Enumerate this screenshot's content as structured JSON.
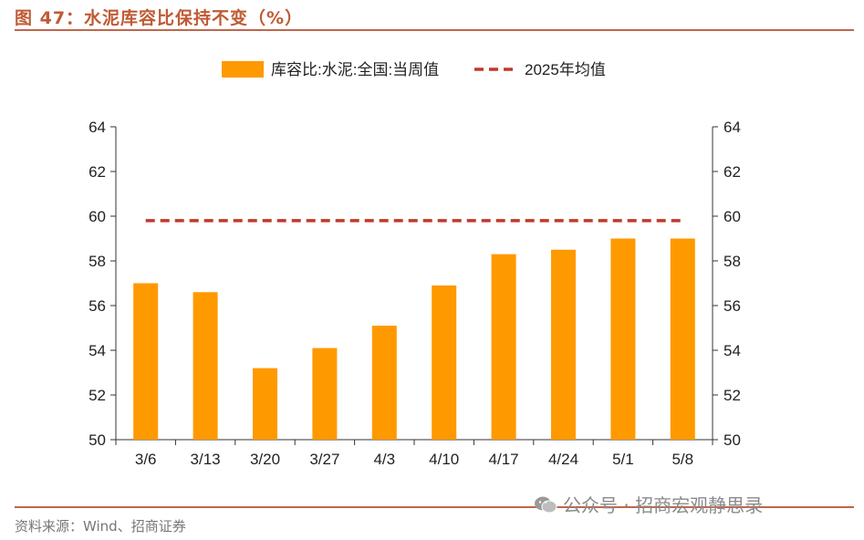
{
  "header": {
    "title": "图 47：水泥库容比保持不变（%）"
  },
  "footer": {
    "source": "资料来源：Wind、招商证券",
    "watermark": "公众号 · 招商宏观静思录",
    "watermark_icon": "wechat-icon"
  },
  "colors": {
    "bar": "#FF9900",
    "avg_line": "#C0392B",
    "title": "#C05A34",
    "rule": "#C0664A"
  },
  "chart_data": {
    "type": "bar",
    "categories": [
      "3/6",
      "3/13",
      "3/20",
      "3/27",
      "4/3",
      "4/10",
      "4/17",
      "4/24",
      "5/1",
      "5/8"
    ],
    "series": [
      {
        "name": "库容比:水泥:全国:当周值",
        "type": "bar",
        "values": [
          57.0,
          56.6,
          53.2,
          54.1,
          55.1,
          56.9,
          58.3,
          58.5,
          59.0,
          59.0
        ]
      },
      {
        "name": "2025年均值",
        "type": "line",
        "style": "dashed",
        "values": [
          59.8,
          59.8,
          59.8,
          59.8,
          59.8,
          59.8,
          59.8,
          59.8,
          59.8,
          59.8
        ]
      }
    ],
    "ylim": [
      50,
      64
    ],
    "yticks": [
      50,
      52,
      54,
      56,
      58,
      60,
      62,
      64
    ],
    "secondary_yticks": [
      50,
      52,
      54,
      56,
      58,
      60,
      62,
      64
    ],
    "legend": "top",
    "grid": false
  }
}
